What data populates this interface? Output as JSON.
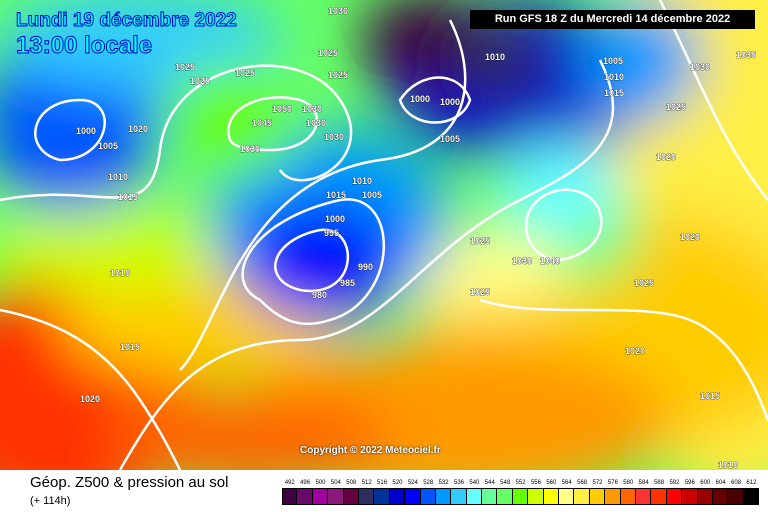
{
  "header": {
    "date": "Lundi 19 décembre 2022",
    "time": "13:00 locale"
  },
  "run_info": "Run GFS 18 Z du Mercredi 14 décembre 2022",
  "copyright": "Copyright © 2022 Meteociel.fr",
  "footer": {
    "title": "Géop. Z500 & pression au sol",
    "lead": "(+ 114h)"
  },
  "legend": {
    "ticks": [
      "492",
      "496",
      "500",
      "504",
      "508",
      "512",
      "516",
      "520",
      "524",
      "528",
      "532",
      "536",
      "540",
      "544",
      "548",
      "552",
      "556",
      "560",
      "564",
      "568",
      "572",
      "576",
      "580",
      "584",
      "588",
      "592",
      "596",
      "600",
      "604",
      "608",
      "612"
    ],
    "colors": [
      "#3d0040",
      "#6a0a6a",
      "#a000a0",
      "#8a1a7a",
      "#660040",
      "#2e2e60",
      "#003399",
      "#0000cc",
      "#0000ff",
      "#0055ff",
      "#0099ff",
      "#33ccff",
      "#66ffff",
      "#66ff99",
      "#66ff66",
      "#66ff00",
      "#ccff00",
      "#ffff00",
      "#ffff88",
      "#ffee44",
      "#ffcc00",
      "#ff9900",
      "#ff6600",
      "#ff3333",
      "#ff3300",
      "#ff0000",
      "#cc0000",
      "#990000",
      "#660000",
      "#4a0000",
      "#000000"
    ]
  },
  "isobar_labels": [
    "1030",
    "1025",
    "1025",
    "1025",
    "1025",
    "1025",
    "1020",
    "1000",
    "1005",
    "1010",
    "1015",
    "1050",
    "1045",
    "1030",
    "1030",
    "1030",
    "1030",
    "1010",
    "1000",
    "1000",
    "1005",
    "1010",
    "1015",
    "1005",
    "1000",
    "995",
    "990",
    "985",
    "980",
    "1010",
    "1015",
    "1020",
    "1005",
    "1010",
    "1015",
    "1035",
    "1030",
    "1025",
    "1020",
    "1020",
    "1025",
    "1030",
    "1040",
    "1025",
    "1025",
    "1020",
    "1015",
    "1010"
  ]
}
